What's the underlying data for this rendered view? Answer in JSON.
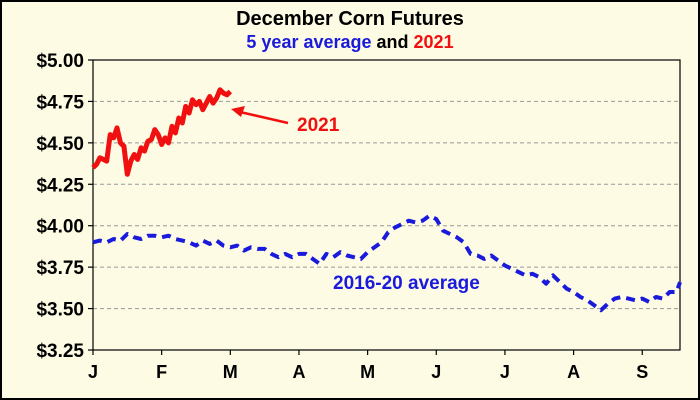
{
  "chart_data": {
    "type": "line",
    "title": "December Corn Futures",
    "subtitle": {
      "part1": "5 year average",
      "part2": " and ",
      "part3": "2021"
    },
    "colors": {
      "background": "#fdfbe3",
      "border": "#000000",
      "avg_series": "#1a1adc",
      "y2021_series": "#f01010",
      "subtitle_dark": "#000000",
      "grid": "#9a9a9a"
    },
    "yticks": [
      "$5.00",
      "$4.75",
      "$4.50",
      "$4.25",
      "$4.00",
      "$3.75",
      "$3.50",
      "$3.25"
    ],
    "ytick_values": [
      5.0,
      4.75,
      4.5,
      4.25,
      4.0,
      3.75,
      3.5,
      3.25
    ],
    "ylim": [
      3.25,
      5.0
    ],
    "xticks": [
      "J",
      "F",
      "M",
      "A",
      "M",
      "J",
      "J",
      "A",
      "S"
    ],
    "xtick_months": [
      1,
      2,
      3,
      4,
      5,
      6,
      7,
      8,
      9
    ],
    "xlim_months": [
      1,
      9.55
    ],
    "grid_horizontal": true,
    "annotations": {
      "y2021_label": "2021",
      "avg_label": "2016-20 average"
    },
    "series": [
      {
        "name": "2016-20 average",
        "style": "dashed",
        "x": [
          1.0,
          1.1,
          1.2,
          1.3,
          1.4,
          1.5,
          1.6,
          1.7,
          1.8,
          1.9,
          2.0,
          2.1,
          2.2,
          2.3,
          2.4,
          2.5,
          2.6,
          2.7,
          2.8,
          2.9,
          3.0,
          3.1,
          3.2,
          3.3,
          3.4,
          3.5,
          3.6,
          3.7,
          3.8,
          3.9,
          4.0,
          4.1,
          4.2,
          4.3,
          4.4,
          4.5,
          4.6,
          4.7,
          4.8,
          4.9,
          5.0,
          5.1,
          5.2,
          5.3,
          5.4,
          5.5,
          5.6,
          5.7,
          5.8,
          5.9,
          6.0,
          6.1,
          6.2,
          6.3,
          6.4,
          6.5,
          6.6,
          6.7,
          6.8,
          6.9,
          7.0,
          7.1,
          7.2,
          7.3,
          7.4,
          7.5,
          7.6,
          7.7,
          7.8,
          7.9,
          8.0,
          8.1,
          8.2,
          8.3,
          8.4,
          8.5,
          8.6,
          8.7,
          8.8,
          8.9,
          9.0,
          9.1,
          9.2,
          9.3,
          9.4,
          9.5,
          9.55
        ],
        "values": [
          3.9,
          3.91,
          3.9,
          3.92,
          3.91,
          3.95,
          3.93,
          3.92,
          3.94,
          3.94,
          3.93,
          3.94,
          3.92,
          3.91,
          3.9,
          3.88,
          3.91,
          3.89,
          3.91,
          3.88,
          3.87,
          3.88,
          3.85,
          3.87,
          3.86,
          3.86,
          3.83,
          3.81,
          3.83,
          3.81,
          3.83,
          3.83,
          3.8,
          3.77,
          3.83,
          3.81,
          3.84,
          3.82,
          3.81,
          3.8,
          3.84,
          3.87,
          3.9,
          3.96,
          3.99,
          4.01,
          4.03,
          4.02,
          4.03,
          4.06,
          4.04,
          3.97,
          3.95,
          3.93,
          3.9,
          3.83,
          3.82,
          3.8,
          3.82,
          3.79,
          3.76,
          3.74,
          3.72,
          3.7,
          3.71,
          3.69,
          3.65,
          3.7,
          3.66,
          3.62,
          3.6,
          3.57,
          3.55,
          3.52,
          3.49,
          3.53,
          3.56,
          3.57,
          3.56,
          3.55,
          3.56,
          3.54,
          3.57,
          3.56,
          3.6,
          3.6,
          3.66
        ]
      },
      {
        "name": "2021",
        "style": "solid",
        "x": [
          1.0,
          1.05,
          1.1,
          1.15,
          1.2,
          1.25,
          1.3,
          1.35,
          1.4,
          1.45,
          1.5,
          1.55,
          1.6,
          1.65,
          1.7,
          1.75,
          1.8,
          1.85,
          1.9,
          1.95,
          2.0,
          2.05,
          2.1,
          2.15,
          2.2,
          2.25,
          2.3,
          2.35,
          2.4,
          2.45,
          2.5,
          2.55,
          2.6,
          2.65,
          2.7,
          2.75,
          2.8,
          2.85,
          2.9,
          2.95,
          3.0
        ],
        "values": [
          4.35,
          4.37,
          4.41,
          4.4,
          4.39,
          4.55,
          4.53,
          4.59,
          4.5,
          4.48,
          4.31,
          4.39,
          4.43,
          4.4,
          4.47,
          4.45,
          4.51,
          4.52,
          4.58,
          4.55,
          4.49,
          4.53,
          4.5,
          4.6,
          4.56,
          4.65,
          4.62,
          4.72,
          4.68,
          4.76,
          4.73,
          4.75,
          4.7,
          4.74,
          4.78,
          4.74,
          4.77,
          4.82,
          4.8,
          4.79,
          4.81
        ]
      }
    ]
  }
}
